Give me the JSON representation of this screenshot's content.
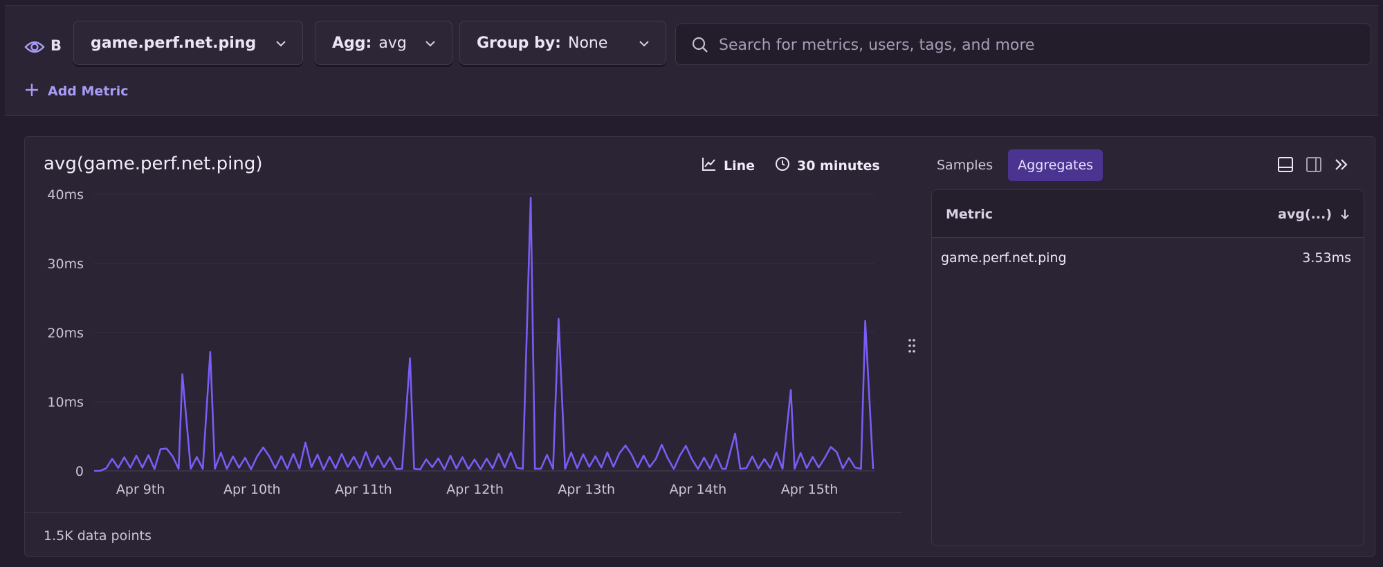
{
  "query": {
    "letter": "B",
    "metric": "game.perf.net.ping",
    "agg_label": "Agg:",
    "agg_value": "avg",
    "group_label": "Group by:",
    "group_value": "None",
    "search_placeholder": "Search for metrics, users, tags, and more",
    "add_metric_label": "Add Metric"
  },
  "panel": {
    "title": "avg(game.perf.net.ping)",
    "display_type": "Line",
    "interval": "30 minutes",
    "data_points_label": "1.5K data points",
    "tabs": [
      {
        "label": "Samples",
        "active": false
      },
      {
        "label": "Aggregates",
        "active": true
      }
    ],
    "table": {
      "col_metric": "Metric",
      "col_avg": "avg(...)",
      "rows": [
        {
          "metric": "game.perf.net.ping",
          "value": "3.53ms"
        }
      ]
    }
  },
  "colors": {
    "accent": "#7a5cf0",
    "series": "#7b5cf4",
    "background": "#231d2d",
    "panel": "#2a2435"
  },
  "chart_data": {
    "type": "line",
    "title": "",
    "xlabel": "",
    "ylabel": "",
    "x_start": "Apr 8th 14:00",
    "x_end": "Apr 15th 14:00",
    "x_ticks": [
      "Apr 9th",
      "Apr 10th",
      "Apr 11th",
      "Apr 12th",
      "Apr 13th",
      "Apr 14th",
      "Apr 15th"
    ],
    "y_ticks": [
      "0",
      "10ms",
      "20ms",
      "30ms",
      "40ms"
    ],
    "ylim": [
      0,
      40
    ],
    "y_unit": "ms",
    "grid": true,
    "legend": "none",
    "baseline_ms": 2.2,
    "spikes": [
      {
        "x": "Apr 9th 09:00",
        "y": 14
      },
      {
        "x": "Apr 9th 15:00",
        "y": 17.2
      },
      {
        "x": "Apr 11th 10:00",
        "y": 16.3
      },
      {
        "x": "Apr 12th 12:00",
        "y": 39.5
      },
      {
        "x": "Apr 12th 18:00",
        "y": 22
      },
      {
        "x": "Apr 14th 06:00",
        "y": 6.2
      },
      {
        "x": "Apr 14th 08:00",
        "y": 5.4
      },
      {
        "x": "Apr 14th 20:00",
        "y": 11.7
      },
      {
        "x": "Apr 15th 12:00",
        "y": 21.7
      }
    ],
    "series": [
      {
        "name": "",
        "values": "see spikes / baseline"
      }
    ]
  }
}
